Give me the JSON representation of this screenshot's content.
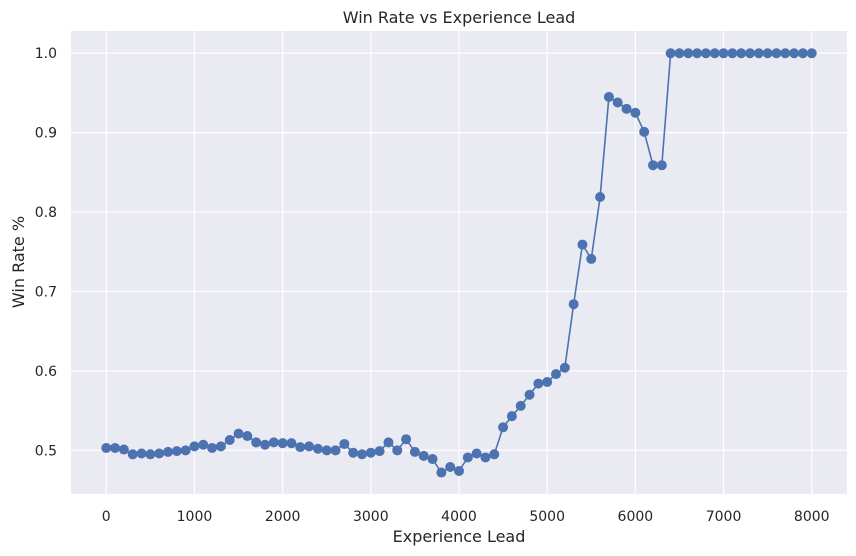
{
  "chart_data": {
    "type": "line",
    "title": "Win Rate vs Experience Lead",
    "xlabel": "Experience Lead",
    "ylabel": "Win Rate %",
    "xlim": [
      -400,
      8400
    ],
    "ylim": [
      0.445,
      1.028
    ],
    "xticks": [
      "0",
      "1000",
      "2000",
      "3000",
      "4000",
      "5000",
      "6000",
      "7000",
      "8000"
    ],
    "yticks": [
      "0.5",
      "0.6",
      "0.7",
      "0.8",
      "0.9",
      "1.0"
    ],
    "grid": true,
    "colors": {
      "background": "#eaeaf2",
      "line": "#4c72b0",
      "grid": "#ffffff"
    },
    "series": [
      {
        "x": [
          0,
          100,
          200,
          300,
          400,
          500,
          600,
          700,
          800,
          900,
          1000,
          1100,
          1200,
          1300,
          1400,
          1500,
          1600,
          1700,
          1800,
          1900,
          2000,
          2100,
          2200,
          2300,
          2400,
          2500,
          2600,
          2700,
          2800,
          2900,
          3000,
          3100,
          3200,
          3300,
          3400,
          3500,
          3600,
          3700,
          3800,
          3900,
          4000,
          4100,
          4200,
          4300,
          4400,
          4500,
          4600,
          4700,
          4800,
          4900,
          5000,
          5100,
          5200,
          5300,
          5400,
          5500,
          5600,
          5700,
          5800,
          5900,
          6000,
          6100,
          6200,
          6300,
          6400,
          6500,
          6600,
          6700,
          6800,
          6900,
          7000,
          7100,
          7200,
          7300,
          7400,
          7500,
          7600,
          7700,
          7800,
          7900,
          8000
        ],
        "values": [
          0.503,
          0.503,
          0.501,
          0.495,
          0.496,
          0.495,
          0.496,
          0.498,
          0.499,
          0.5,
          0.505,
          0.507,
          0.503,
          0.505,
          0.513,
          0.521,
          0.518,
          0.51,
          0.507,
          0.51,
          0.509,
          0.509,
          0.504,
          0.505,
          0.502,
          0.5,
          0.5,
          0.508,
          0.497,
          0.495,
          0.497,
          0.499,
          0.51,
          0.5,
          0.514,
          0.498,
          0.493,
          0.489,
          0.472,
          0.479,
          0.474,
          0.491,
          0.496,
          0.491,
          0.495,
          0.529,
          0.543,
          0.556,
          0.57,
          0.584,
          0.586,
          0.596,
          0.604,
          0.684,
          0.759,
          0.741,
          0.819,
          0.945,
          0.938,
          0.93,
          0.925,
          0.901,
          0.859,
          0.859,
          1.0,
          1.0,
          1.0,
          1.0,
          1.0,
          1.0,
          1.0,
          1.0,
          1.0,
          1.0,
          1.0,
          1.0,
          1.0,
          1.0,
          1.0,
          1.0,
          1.0
        ]
      }
    ]
  }
}
